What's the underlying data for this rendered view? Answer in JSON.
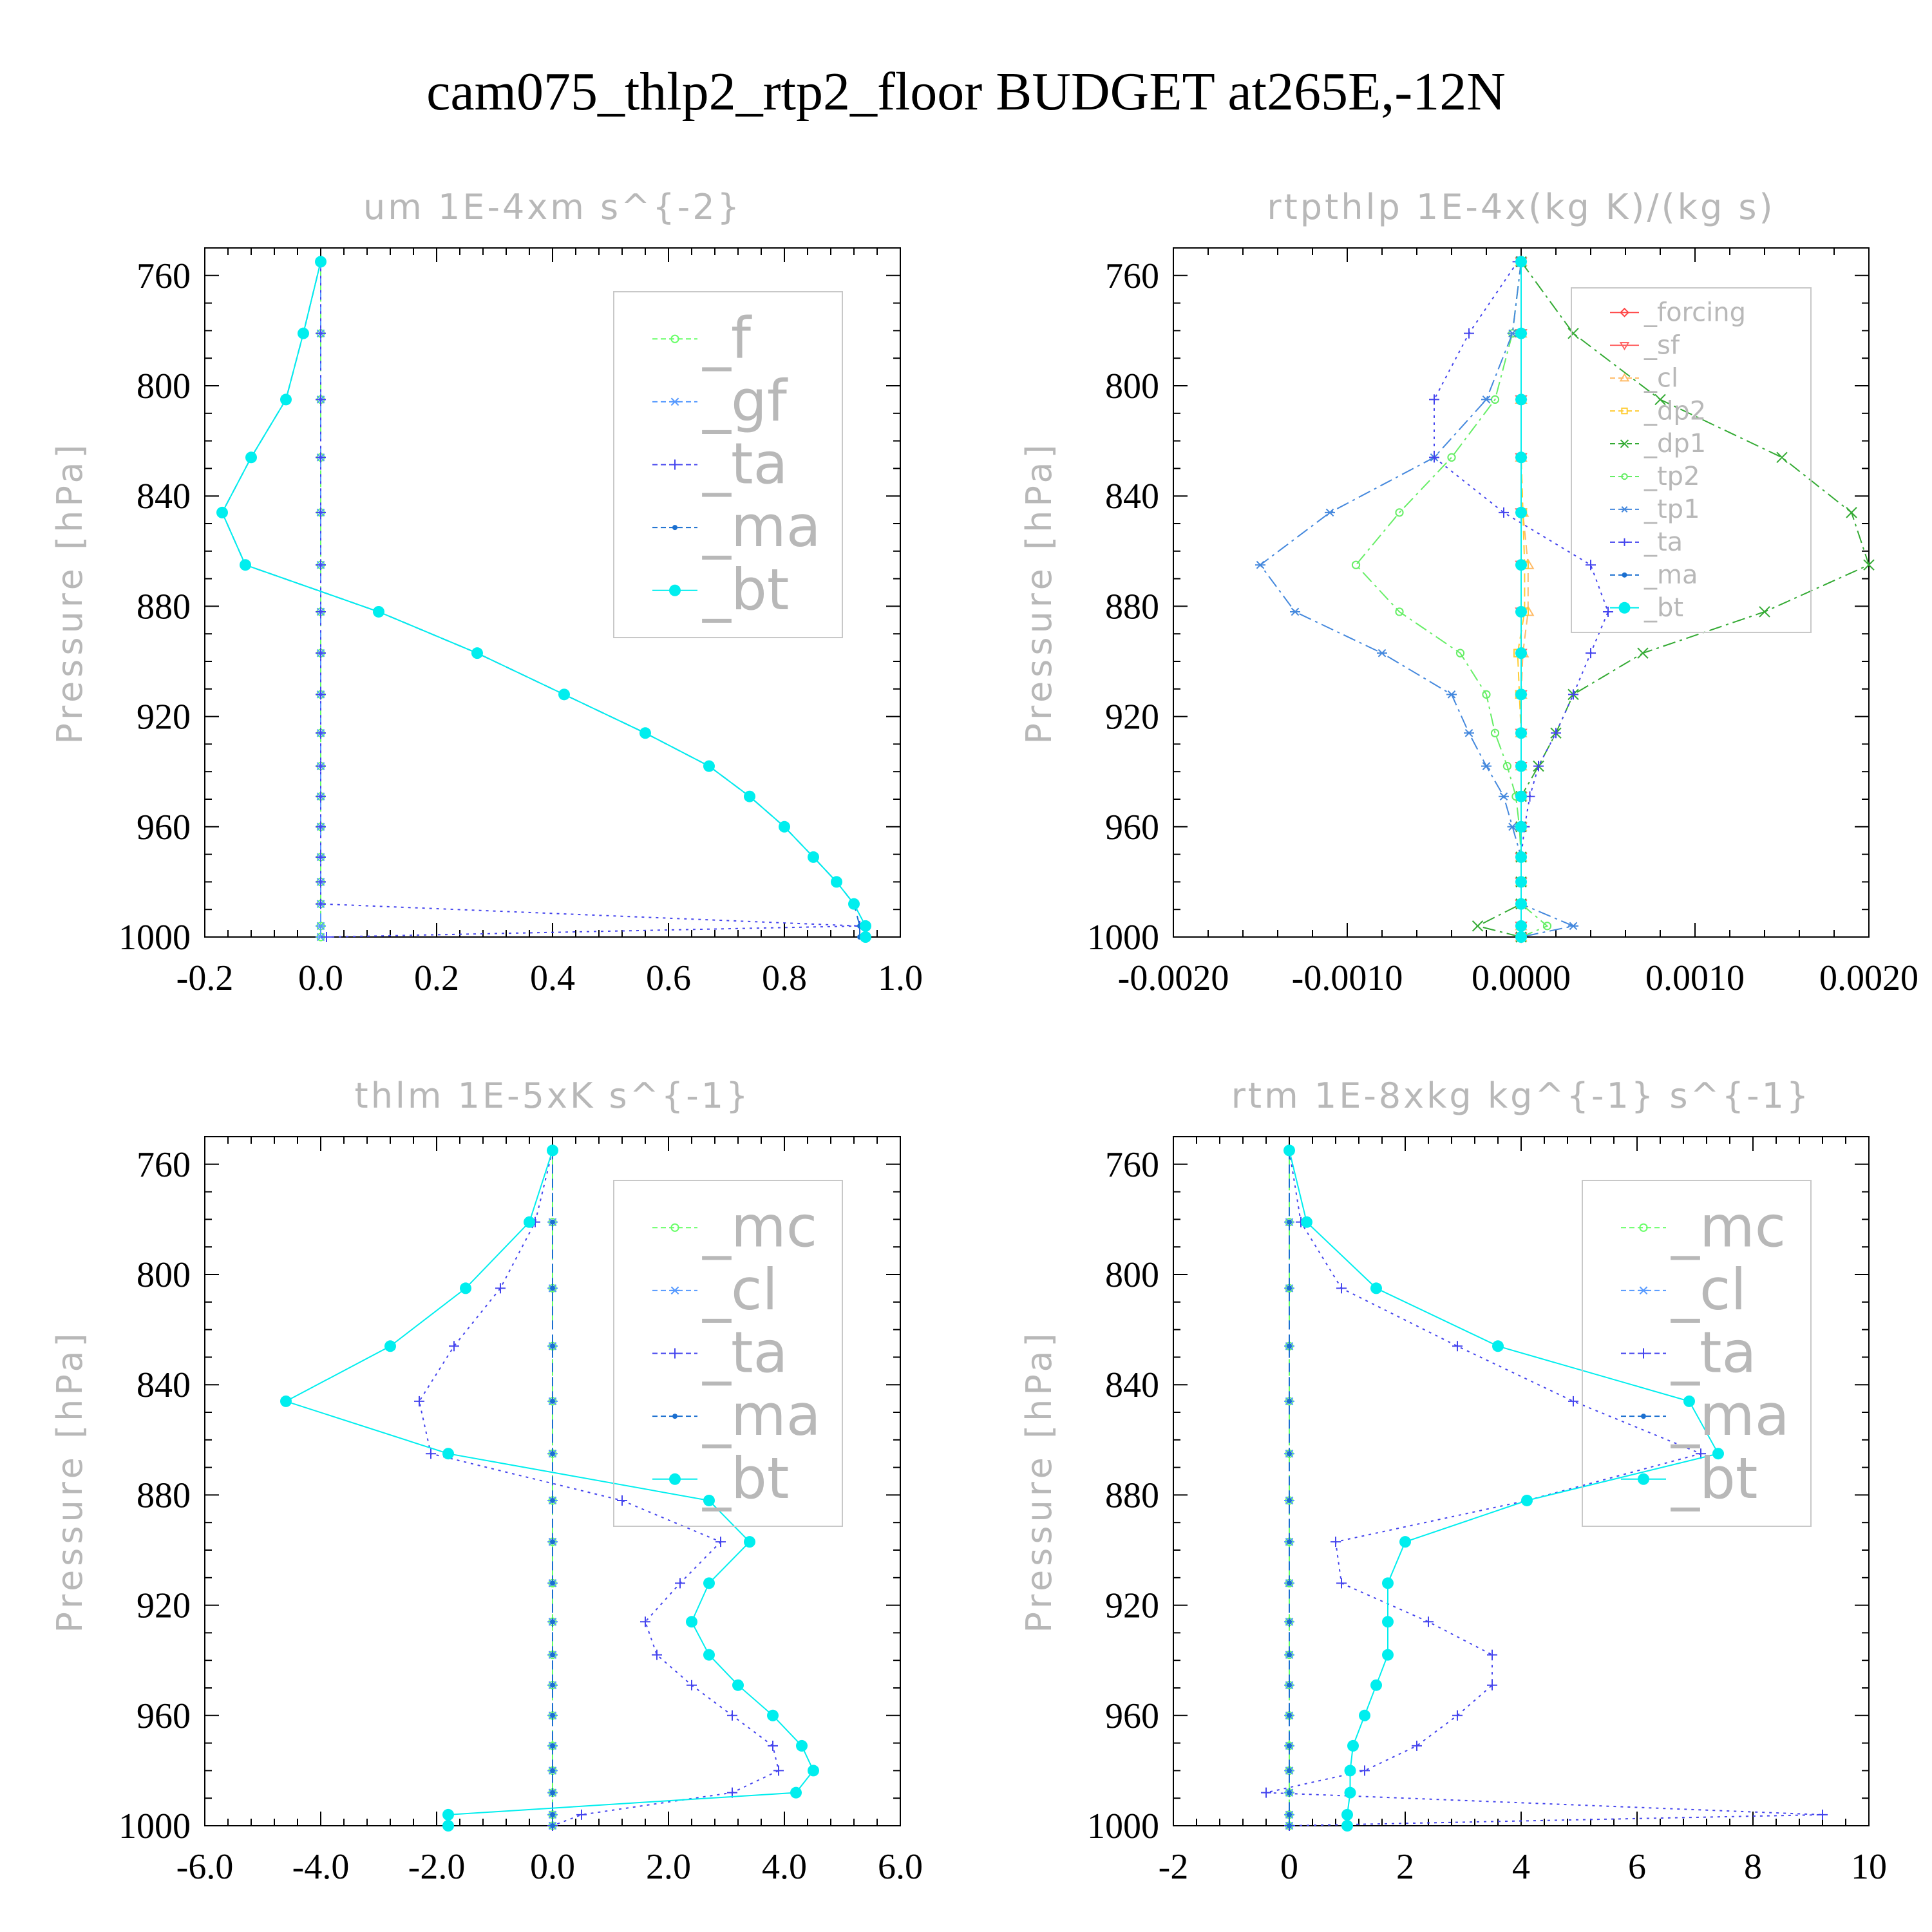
{
  "title": "cam075_thlp2_rtp2_floor  BUDGET at265E,-12N",
  "chart_data": [
    {
      "type": "line",
      "title": "um   1E-4xm s^{-2}",
      "ylabel": "Pressure [hPa]",
      "xlim": [
        -0.2,
        1.0
      ],
      "ylim": [
        750,
        1000
      ],
      "xticks": [
        "-0.2",
        "0.0",
        "0.2",
        "0.4",
        "0.6",
        "0.8",
        "1.0"
      ],
      "xtick_values": [
        -0.2,
        0.0,
        0.2,
        0.4,
        0.6,
        0.8,
        1.0
      ],
      "yticks": [
        "760",
        "800",
        "840",
        "880",
        "920",
        "960",
        "1000"
      ],
      "legend_placement": "top-right",
      "legend_size": "large",
      "y": [
        755,
        781,
        805,
        826,
        846,
        865,
        882,
        897,
        912,
        926,
        938,
        949,
        960,
        971,
        980,
        988,
        996,
        1000
      ],
      "series": [
        {
          "name": "_f",
          "color": "#66ff66",
          "dash": "long",
          "marker": "circle",
          "values": [
            0,
            0,
            0,
            0,
            0,
            0,
            0,
            0,
            0,
            0,
            0,
            0,
            0,
            0,
            0,
            0,
            0,
            0
          ]
        },
        {
          "name": "_gf",
          "color": "#5599ff",
          "dash": "dash",
          "marker": "star",
          "values": [
            0,
            0,
            0,
            0,
            0,
            0,
            0,
            0,
            0,
            0,
            0,
            0,
            0,
            0,
            0,
            0,
            0,
            0
          ]
        },
        {
          "name": "_ta",
          "color": "#4444ee",
          "dash": "dot",
          "marker": "plus",
          "values": [
            0,
            0,
            0,
            0,
            0,
            0,
            0,
            0,
            0,
            0,
            0,
            0,
            0,
            0,
            0,
            0,
            0.93,
            0.01
          ]
        },
        {
          "name": "_ma",
          "color": "#1a6fd0",
          "dash": "dash",
          "marker": "dot",
          "values": [
            0,
            -0.03,
            -0.06,
            -0.12,
            -0.17,
            -0.13,
            0.1,
            0.27,
            0.42,
            0.56,
            0.67,
            0.74,
            0.8,
            0.85,
            0.89,
            0.92,
            0.93,
            0.93
          ]
        },
        {
          "name": "_bt",
          "color": "#00eeee",
          "dash": "solid",
          "marker": "bigdot",
          "values": [
            0,
            -0.03,
            -0.06,
            -0.12,
            -0.17,
            -0.13,
            0.1,
            0.27,
            0.42,
            0.56,
            0.67,
            0.74,
            0.8,
            0.85,
            0.89,
            0.92,
            0.94,
            0.94
          ]
        }
      ]
    },
    {
      "type": "line",
      "title": "rtpthlp   1E-4x(kg K)/(kg s)",
      "ylabel": "Pressure [hPa]",
      "xlim": [
        -0.002,
        0.002
      ],
      "ylim": [
        750,
        1000
      ],
      "xticks": [
        "-0.0020",
        "-0.0010",
        "0.0000",
        "0.0010",
        "0.0020"
      ],
      "xtick_values": [
        -0.002,
        -0.001,
        0.0,
        0.001,
        0.002
      ],
      "yticks": [
        "760",
        "800",
        "840",
        "880",
        "920",
        "960",
        "1000"
      ],
      "legend_placement": "top-right",
      "legend_size": "small",
      "y": [
        755,
        781,
        805,
        826,
        846,
        865,
        882,
        897,
        912,
        926,
        938,
        949,
        960,
        971,
        980,
        988,
        996,
        1000
      ],
      "series": [
        {
          "name": "_forcing",
          "color": "#ff4444",
          "dash": "solid",
          "marker": "diamond",
          "values": [
            0,
            0,
            0,
            0,
            0,
            0,
            0,
            0,
            0,
            0,
            0,
            0,
            0,
            0,
            0,
            0,
            0,
            0
          ]
        },
        {
          "name": "_sf",
          "color": "#ff6666",
          "dash": "solid",
          "marker": "triangle",
          "values": [
            0,
            0,
            0,
            0,
            0,
            0,
            0,
            0,
            0,
            0,
            0,
            0,
            0,
            0,
            0,
            0,
            0,
            0
          ]
        },
        {
          "name": "_cl",
          "color": "#ffbb66",
          "dash": "dash",
          "marker": "triangle-up",
          "values": [
            0,
            0,
            0,
            0,
            1e-05,
            4e-05,
            4e-05,
            1e-05,
            0,
            0,
            0,
            0,
            0,
            0,
            0,
            0,
            0,
            0
          ]
        },
        {
          "name": "_dp2",
          "color": "#ffcc33",
          "dash": "dash",
          "marker": "square",
          "values": [
            0,
            0,
            0,
            0,
            1e-05,
            2e-05,
            2e-05,
            -2e-05,
            -1e-05,
            0,
            0,
            0,
            0,
            0,
            0,
            0,
            0,
            0
          ]
        },
        {
          "name": "_dp1",
          "color": "#33aa33",
          "dash": "dashdot",
          "marker": "x",
          "values": [
            0,
            0.0003,
            0.0008,
            0.0015,
            0.0019,
            0.002,
            0.0014,
            0.0007,
            0.0003,
            0.0002,
            0.0001,
            0,
            0,
            0,
            0,
            0,
            -0.00025,
            0
          ]
        },
        {
          "name": "_tp2",
          "color": "#66ee66",
          "dash": "dashdot",
          "marker": "circle",
          "values": [
            0,
            -5e-05,
            -0.00015,
            -0.0004,
            -0.0007,
            -0.00095,
            -0.0007,
            -0.00035,
            -0.0002,
            -0.00015,
            -8e-05,
            -3e-05,
            -1e-05,
            0,
            0,
            0,
            0.00015,
            0
          ]
        },
        {
          "name": "_tp1",
          "color": "#4488dd",
          "dash": "dashdot",
          "marker": "star",
          "values": [
            0,
            -5e-05,
            -0.0002,
            -0.0005,
            -0.0011,
            -0.0015,
            -0.0013,
            -0.0008,
            -0.0004,
            -0.0003,
            -0.0002,
            -0.0001,
            -5e-05,
            0,
            0,
            0,
            0.0003,
            0
          ]
        },
        {
          "name": "_ta",
          "color": "#4444ee",
          "dash": "dot",
          "marker": "plus",
          "values": [
            -2e-05,
            -0.0003,
            -0.0005,
            -0.0005,
            -0.0001,
            0.0004,
            0.0005,
            0.0004,
            0.0003,
            0.0002,
            0.0001,
            5e-05,
            2e-05,
            0,
            0,
            0,
            0,
            0
          ]
        },
        {
          "name": "_ma",
          "color": "#1a6fd0",
          "dash": "dash",
          "marker": "dot",
          "values": [
            0,
            0,
            0,
            0,
            0,
            0,
            0,
            0,
            0,
            0,
            0,
            0,
            0,
            0,
            0,
            0,
            0,
            0
          ]
        },
        {
          "name": "_bt",
          "color": "#00eeee",
          "dash": "solid",
          "marker": "bigdot",
          "values": [
            0,
            0,
            0,
            0,
            0,
            0,
            0,
            0,
            0,
            0,
            0,
            0,
            0,
            0,
            0,
            0,
            0,
            0
          ]
        }
      ]
    },
    {
      "type": "line",
      "title": "thlm   1E-5xK s^{-1}",
      "ylabel": "Pressure [hPa]",
      "xlim": [
        -6.0,
        6.0
      ],
      "ylim": [
        750,
        1000
      ],
      "xticks": [
        "-6.0",
        "-4.0",
        "-2.0",
        "0.0",
        "2.0",
        "4.0",
        "6.0"
      ],
      "xtick_values": [
        -6.0,
        -4.0,
        -2.0,
        0.0,
        2.0,
        4.0,
        6.0
      ],
      "yticks": [
        "760",
        "800",
        "840",
        "880",
        "920",
        "960",
        "1000"
      ],
      "legend_placement": "top-right",
      "legend_size": "large",
      "y": [
        755,
        781,
        805,
        826,
        846,
        865,
        882,
        897,
        912,
        926,
        938,
        949,
        960,
        971,
        980,
        988,
        996,
        1000
      ],
      "series": [
        {
          "name": "_mc",
          "color": "#66ff66",
          "dash": "long",
          "marker": "circle",
          "values": [
            0,
            0,
            0,
            0,
            0,
            0,
            0,
            0,
            0,
            0,
            0,
            0,
            0,
            0,
            0,
            0,
            0,
            0
          ]
        },
        {
          "name": "_cl",
          "color": "#5599ff",
          "dash": "dash",
          "marker": "star",
          "values": [
            0,
            0,
            0,
            0,
            0,
            0,
            0,
            0,
            0,
            0,
            0,
            0,
            0,
            0,
            0,
            0,
            0,
            0
          ]
        },
        {
          "name": "_ta",
          "color": "#4444ee",
          "dash": "dot",
          "marker": "plus",
          "values": [
            0,
            -0.3,
            -0.9,
            -1.7,
            -2.3,
            -2.1,
            1.2,
            2.9,
            2.2,
            1.6,
            1.8,
            2.4,
            3.1,
            3.8,
            3.9,
            3.1,
            0.5,
            0
          ]
        },
        {
          "name": "_ma",
          "color": "#1a6fd0",
          "dash": "dash",
          "marker": "dot",
          "values": [
            0,
            0,
            0,
            0,
            0,
            0,
            0,
            0,
            0,
            0,
            0,
            0,
            0,
            0,
            0,
            0,
            0,
            0
          ]
        },
        {
          "name": "_bt",
          "color": "#00eeee",
          "dash": "solid",
          "marker": "bigdot",
          "values": [
            0,
            -0.4,
            -1.5,
            -2.8,
            -4.6,
            -1.8,
            2.7,
            3.4,
            2.7,
            2.4,
            2.7,
            3.2,
            3.8,
            4.3,
            4.5,
            4.2,
            -1.8,
            -1.8
          ]
        }
      ]
    },
    {
      "type": "line",
      "title": "rtm   1E-8xkg kg^{-1} s^{-1}",
      "ylabel": "Pressure [hPa]",
      "xlim": [
        -2,
        10
      ],
      "ylim": [
        750,
        1000
      ],
      "xticks": [
        "-2",
        "0",
        "2",
        "4",
        "6",
        "8",
        "10"
      ],
      "xtick_values": [
        -2,
        0,
        2,
        4,
        6,
        8,
        10
      ],
      "yticks": [
        "760",
        "800",
        "840",
        "880",
        "920",
        "960",
        "1000"
      ],
      "legend_placement": "top-right",
      "legend_size": "large",
      "y": [
        755,
        781,
        805,
        826,
        846,
        865,
        882,
        897,
        912,
        926,
        938,
        949,
        960,
        971,
        980,
        988,
        996,
        1000
      ],
      "series": [
        {
          "name": "_mc",
          "color": "#66ff66",
          "dash": "long",
          "marker": "circle",
          "values": [
            0,
            0,
            0,
            0,
            0,
            0,
            0,
            0,
            0,
            0,
            0,
            0,
            0,
            0,
            0,
            0,
            0,
            0
          ]
        },
        {
          "name": "_cl",
          "color": "#5599ff",
          "dash": "dash",
          "marker": "star",
          "values": [
            0,
            0,
            0,
            0,
            0,
            0,
            0,
            0,
            0,
            0,
            0,
            0,
            0,
            0,
            0,
            0,
            0,
            0
          ]
        },
        {
          "name": "_ta",
          "color": "#4444ee",
          "dash": "dot",
          "marker": "plus",
          "values": [
            0,
            0.2,
            0.9,
            2.9,
            4.9,
            7.1,
            4.1,
            0.8,
            0.9,
            2.4,
            3.5,
            3.5,
            2.9,
            2.2,
            1.3,
            -0.4,
            9.2,
            0
          ]
        },
        {
          "name": "_ma",
          "color": "#1a6fd0",
          "dash": "dash",
          "marker": "dot",
          "values": [
            0,
            0,
            0,
            0,
            0,
            0,
            0,
            0,
            0,
            0,
            0,
            0,
            0,
            0,
            0,
            0,
            0,
            0
          ]
        },
        {
          "name": "_bt",
          "color": "#00eeee",
          "dash": "solid",
          "marker": "bigdot",
          "values": [
            0,
            0.3,
            1.5,
            3.6,
            6.9,
            7.4,
            4.1,
            2.0,
            1.7,
            1.7,
            1.7,
            1.5,
            1.3,
            1.1,
            1.05,
            1.05,
            1.0,
            1.0
          ]
        }
      ]
    }
  ]
}
